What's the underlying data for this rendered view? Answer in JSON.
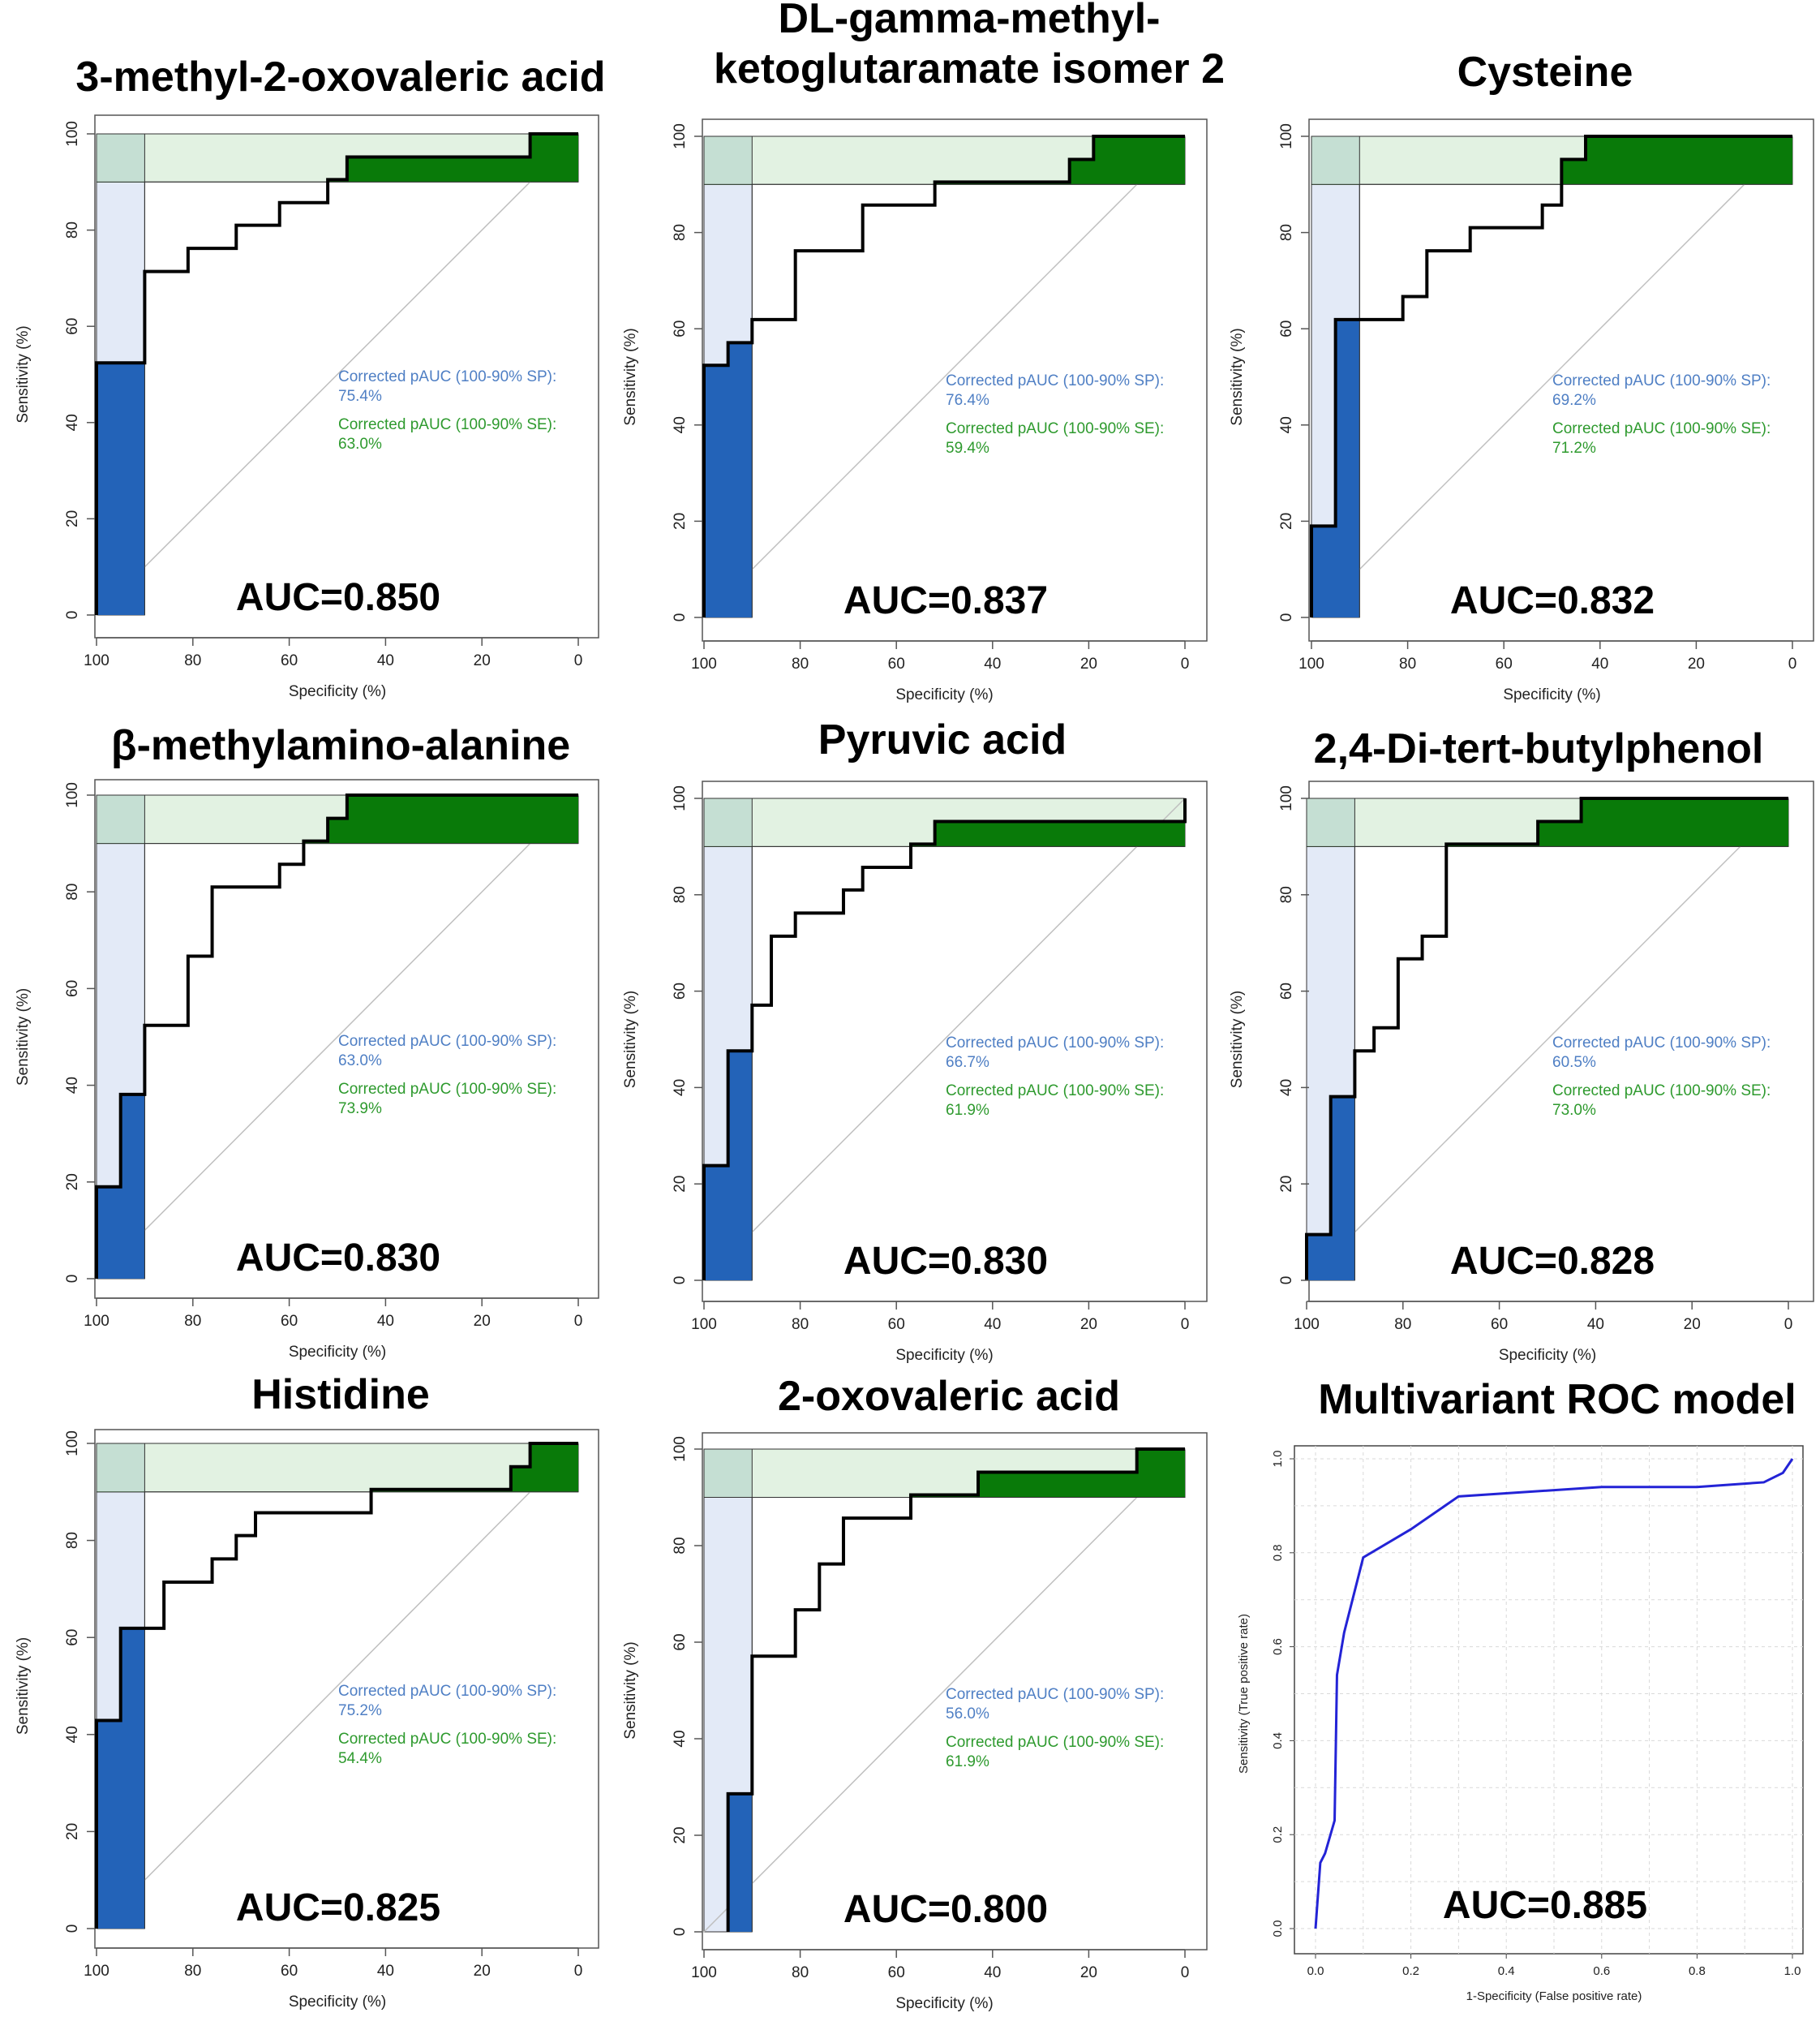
{
  "figure": {
    "layout": "3x3 grid of ROC curve panels"
  },
  "colors": {
    "sp_fill": "#e3eaf7",
    "se_fill": "#e2f2e2",
    "overlap_fill": "#c5dfd3",
    "sp_pauc": "#2363b8",
    "se_pauc": "#097a09",
    "curve": "#000000",
    "diagonal": "#bfbfbf",
    "multivariant_curve": "#2323d6",
    "pauc_sp_text": "#4f7fc4",
    "pauc_se_text": "#2e9a2e"
  },
  "chart_data": [
    {
      "type": "line",
      "title": "3-methyl-2-oxovaleric acid",
      "xlabel": "Specificity (%)",
      "ylabel": "Sensitivity (%)",
      "xlim": [
        100,
        0
      ],
      "ylim": [
        0,
        100
      ],
      "x_ticks": [
        "100",
        "80",
        "60",
        "40",
        "20",
        "0"
      ],
      "y_ticks": [
        "0",
        "20",
        "40",
        "60",
        "80",
        "100"
      ],
      "roc": [
        [
          100,
          0
        ],
        [
          100,
          52.4
        ],
        [
          90,
          52.4
        ],
        [
          90,
          71.4
        ],
        [
          81,
          71.4
        ],
        [
          81,
          76.2
        ],
        [
          71,
          76.2
        ],
        [
          71,
          81
        ],
        [
          62,
          81
        ],
        [
          62,
          85.7
        ],
        [
          52,
          85.7
        ],
        [
          52,
          90.5
        ],
        [
          48,
          90.5
        ],
        [
          48,
          95.2
        ],
        [
          10,
          95.2
        ],
        [
          10,
          100
        ],
        [
          0,
          100
        ]
      ],
      "pauc_sp_text": [
        "Corrected pAUC (100-90% SP):",
        "75.4%"
      ],
      "pauc_se_text": [
        "Corrected pAUC (100-90% SE):",
        "63.0%"
      ],
      "auc_text": "AUC=0.850"
    },
    {
      "type": "line",
      "title": "DL-gamma-methyl-\nketoglutaramate isomer 2",
      "title_lines": [
        "DL-gamma-methyl-",
        "ketoglutaramate isomer 2"
      ],
      "xlabel": "Specificity (%)",
      "ylabel": "Sensitivity (%)",
      "xlim": [
        100,
        0
      ],
      "ylim": [
        0,
        100
      ],
      "x_ticks": [
        "100",
        "80",
        "60",
        "40",
        "20",
        "0"
      ],
      "y_ticks": [
        "0",
        "20",
        "40",
        "60",
        "80",
        "100"
      ],
      "roc": [
        [
          100,
          0
        ],
        [
          100,
          52.4
        ],
        [
          95,
          52.4
        ],
        [
          95,
          57.1
        ],
        [
          90,
          57.1
        ],
        [
          90,
          61.9
        ],
        [
          81,
          61.9
        ],
        [
          81,
          76.2
        ],
        [
          67,
          76.2
        ],
        [
          67,
          85.7
        ],
        [
          52,
          85.7
        ],
        [
          52,
          90.5
        ],
        [
          24,
          90.5
        ],
        [
          24,
          95.2
        ],
        [
          19,
          95.2
        ],
        [
          19,
          100
        ],
        [
          0,
          100
        ]
      ],
      "pauc_sp_text": [
        "Corrected pAUC (100-90% SP):",
        "76.4%"
      ],
      "pauc_se_text": [
        "Corrected pAUC (100-90% SE):",
        "59.4%"
      ],
      "auc_text": "AUC=0.837"
    },
    {
      "type": "line",
      "title": "Cysteine",
      "xlabel": "Specificity (%)",
      "ylabel": "Sensitivity (%)",
      "xlim": [
        100,
        0
      ],
      "ylim": [
        0,
        100
      ],
      "x_ticks": [
        "100",
        "80",
        "60",
        "40",
        "20",
        "0"
      ],
      "y_ticks": [
        "0",
        "20",
        "40",
        "60",
        "80",
        "100"
      ],
      "roc": [
        [
          100,
          0
        ],
        [
          100,
          19
        ],
        [
          95,
          19
        ],
        [
          95,
          61.9
        ],
        [
          81,
          61.9
        ],
        [
          81,
          66.7
        ],
        [
          76,
          66.7
        ],
        [
          76,
          76.2
        ],
        [
          67,
          76.2
        ],
        [
          67,
          81
        ],
        [
          52,
          81
        ],
        [
          52,
          85.7
        ],
        [
          48,
          85.7
        ],
        [
          48,
          95.2
        ],
        [
          43,
          95.2
        ],
        [
          43,
          100
        ],
        [
          0,
          100
        ]
      ],
      "pauc_sp_text": [
        "Corrected pAUC (100-90% SP):",
        "69.2%"
      ],
      "pauc_se_text": [
        "Corrected pAUC (100-90% SE):",
        "71.2%"
      ],
      "auc_text": "AUC=0.832"
    },
    {
      "type": "line",
      "title": "β-methylamino-alanine",
      "xlabel": "Specificity (%)",
      "ylabel": "Sensitivity (%)",
      "xlim": [
        100,
        0
      ],
      "ylim": [
        0,
        100
      ],
      "x_ticks": [
        "100",
        "80",
        "60",
        "40",
        "20",
        "0"
      ],
      "y_ticks": [
        "0",
        "20",
        "40",
        "60",
        "80",
        "100"
      ],
      "roc": [
        [
          100,
          0
        ],
        [
          100,
          19
        ],
        [
          95,
          19
        ],
        [
          95,
          38.1
        ],
        [
          90,
          38.1
        ],
        [
          90,
          52.4
        ],
        [
          81,
          52.4
        ],
        [
          81,
          66.7
        ],
        [
          76,
          66.7
        ],
        [
          76,
          81
        ],
        [
          62,
          81
        ],
        [
          62,
          85.7
        ],
        [
          57,
          85.7
        ],
        [
          57,
          90.5
        ],
        [
          52,
          90.5
        ],
        [
          52,
          95.2
        ],
        [
          48,
          95.2
        ],
        [
          48,
          100
        ],
        [
          0,
          100
        ]
      ],
      "pauc_sp_text": [
        "Corrected pAUC (100-90% SP):",
        "63.0%"
      ],
      "pauc_se_text": [
        "Corrected pAUC (100-90% SE):",
        "73.9%"
      ],
      "auc_text": "AUC=0.830"
    },
    {
      "type": "line",
      "title": "Pyruvic acid",
      "xlabel": "Specificity (%)",
      "ylabel": "Sensitivity (%)",
      "xlim": [
        100,
        0
      ],
      "ylim": [
        0,
        100
      ],
      "x_ticks": [
        "100",
        "80",
        "60",
        "40",
        "20",
        "0"
      ],
      "y_ticks": [
        "0",
        "20",
        "40",
        "60",
        "80",
        "100"
      ],
      "roc": [
        [
          100,
          0
        ],
        [
          100,
          23.8
        ],
        [
          95,
          23.8
        ],
        [
          95,
          47.6
        ],
        [
          90,
          47.6
        ],
        [
          90,
          57.1
        ],
        [
          86,
          57.1
        ],
        [
          86,
          71.4
        ],
        [
          81,
          71.4
        ],
        [
          81,
          76.2
        ],
        [
          71,
          76.2
        ],
        [
          71,
          81
        ],
        [
          67,
          81
        ],
        [
          67,
          85.7
        ],
        [
          57,
          85.7
        ],
        [
          57,
          90.5
        ],
        [
          52,
          90.5
        ],
        [
          52,
          95.2
        ],
        [
          0,
          95.2
        ],
        [
          0,
          100
        ]
      ],
      "pauc_sp_text": [
        "Corrected pAUC (100-90% SP):",
        "66.7%"
      ],
      "pauc_se_text": [
        "Corrected pAUC (100-90% SE):",
        "61.9%"
      ],
      "auc_text": "AUC=0.830"
    },
    {
      "type": "line",
      "title": "2,4-Di-tert-butylphenol",
      "xlabel": "Specificity (%)",
      "ylabel": "Sensitivity (%)",
      "xlim": [
        100,
        0
      ],
      "ylim": [
        0,
        100
      ],
      "x_ticks": [
        "100",
        "80",
        "60",
        "40",
        "20",
        "0"
      ],
      "y_ticks": [
        "0",
        "20",
        "40",
        "60",
        "80",
        "100"
      ],
      "roc": [
        [
          100,
          0
        ],
        [
          100,
          9.5
        ],
        [
          95,
          9.5
        ],
        [
          95,
          38.1
        ],
        [
          90,
          38.1
        ],
        [
          90,
          47.6
        ],
        [
          86,
          47.6
        ],
        [
          86,
          52.4
        ],
        [
          81,
          52.4
        ],
        [
          81,
          66.7
        ],
        [
          76,
          66.7
        ],
        [
          76,
          71.4
        ],
        [
          71,
          71.4
        ],
        [
          71,
          90.5
        ],
        [
          52,
          90.5
        ],
        [
          52,
          95.2
        ],
        [
          43,
          95.2
        ],
        [
          43,
          100
        ],
        [
          0,
          100
        ]
      ],
      "pauc_sp_text": [
        "Corrected pAUC (100-90% SP):",
        "60.5%"
      ],
      "pauc_se_text": [
        "Corrected pAUC (100-90% SE):",
        "73.0%"
      ],
      "auc_text": "AUC=0.828"
    },
    {
      "type": "line",
      "title": "Histidine",
      "xlabel": "Specificity (%)",
      "ylabel": "Sensitivity (%)",
      "xlim": [
        100,
        0
      ],
      "ylim": [
        0,
        100
      ],
      "x_ticks": [
        "100",
        "80",
        "60",
        "40",
        "20",
        "0"
      ],
      "y_ticks": [
        "0",
        "20",
        "40",
        "60",
        "80",
        "100"
      ],
      "roc": [
        [
          100,
          0
        ],
        [
          100,
          42.9
        ],
        [
          95,
          42.9
        ],
        [
          95,
          61.9
        ],
        [
          86,
          61.9
        ],
        [
          86,
          71.4
        ],
        [
          76,
          71.4
        ],
        [
          76,
          76.2
        ],
        [
          71,
          76.2
        ],
        [
          71,
          81
        ],
        [
          67,
          81
        ],
        [
          67,
          85.7
        ],
        [
          43,
          85.7
        ],
        [
          43,
          90.5
        ],
        [
          14,
          90.5
        ],
        [
          14,
          95.2
        ],
        [
          10,
          95.2
        ],
        [
          10,
          100
        ],
        [
          0,
          100
        ]
      ],
      "pauc_sp_text": [
        "Corrected pAUC (100-90% SP):",
        "75.2%"
      ],
      "pauc_se_text": [
        "Corrected pAUC (100-90% SE):",
        "54.4%"
      ],
      "auc_text": "AUC=0.825"
    },
    {
      "type": "line",
      "title": "2-oxovaleric acid",
      "xlabel": "Specificity (%)",
      "ylabel": "Sensitivity (%)",
      "xlim": [
        100,
        0
      ],
      "ylim": [
        0,
        100
      ],
      "x_ticks": [
        "100",
        "80",
        "60",
        "40",
        "20",
        "0"
      ],
      "y_ticks": [
        "0",
        "20",
        "40",
        "60",
        "80",
        "100"
      ],
      "roc": [
        [
          95,
          0
        ],
        [
          95,
          28.6
        ],
        [
          90,
          28.6
        ],
        [
          90,
          57.1
        ],
        [
          81,
          57.1
        ],
        [
          81,
          66.7
        ],
        [
          76,
          66.7
        ],
        [
          76,
          76.2
        ],
        [
          71,
          76.2
        ],
        [
          71,
          85.7
        ],
        [
          57,
          85.7
        ],
        [
          57,
          90.5
        ],
        [
          43,
          90.5
        ],
        [
          43,
          95.2
        ],
        [
          10,
          95.2
        ],
        [
          10,
          100
        ],
        [
          0,
          100
        ]
      ],
      "pauc_sp_text": [
        "Corrected pAUC (100-90% SP):",
        "56.0%"
      ],
      "pauc_se_text": [
        "Corrected pAUC (100-90% SE):",
        "61.9%"
      ],
      "auc_text": "AUC=0.800"
    },
    {
      "type": "line",
      "title": "Multivariant ROC model",
      "xlabel": "1-Specificity (False positive rate)",
      "ylabel": "Sensitivity (True positive rate)",
      "xlim": [
        0,
        1
      ],
      "ylim": [
        0,
        1
      ],
      "grid": true,
      "x_ticks": [
        "0.0",
        "0.2",
        "0.4",
        "0.6",
        "0.8",
        "1.0"
      ],
      "y_ticks": [
        "0.0",
        "0.2",
        "0.4",
        "0.6",
        "0.8",
        "1.0"
      ],
      "roc": [
        [
          0,
          0
        ],
        [
          0.01,
          0.14
        ],
        [
          0.02,
          0.16
        ],
        [
          0.04,
          0.23
        ],
        [
          0.045,
          0.54
        ],
        [
          0.06,
          0.63
        ],
        [
          0.1,
          0.79
        ],
        [
          0.2,
          0.85
        ],
        [
          0.3,
          0.92
        ],
        [
          0.6,
          0.94
        ],
        [
          0.8,
          0.94
        ],
        [
          0.94,
          0.95
        ],
        [
          0.98,
          0.97
        ],
        [
          1,
          1
        ]
      ],
      "auc_text": "AUC=0.885"
    }
  ]
}
